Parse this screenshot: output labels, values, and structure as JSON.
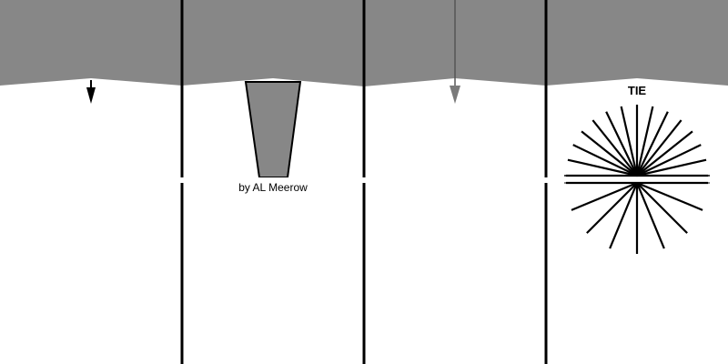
{
  "panels": [
    {
      "id": "panel-1",
      "feature": "down-arrow"
    },
    {
      "id": "panel-2",
      "feature": "tapered-funnel",
      "credit": "by AL Meerow"
    },
    {
      "id": "panel-3",
      "feature": "gray-down-arrow"
    },
    {
      "id": "panel-4",
      "feature": "starburst",
      "label": "TIE"
    }
  ],
  "colors": {
    "fill": "#878787",
    "line": "#000000",
    "arrow_dark": "#000000",
    "arrow_light": "#7a7a7a",
    "background": "#ffffff"
  }
}
